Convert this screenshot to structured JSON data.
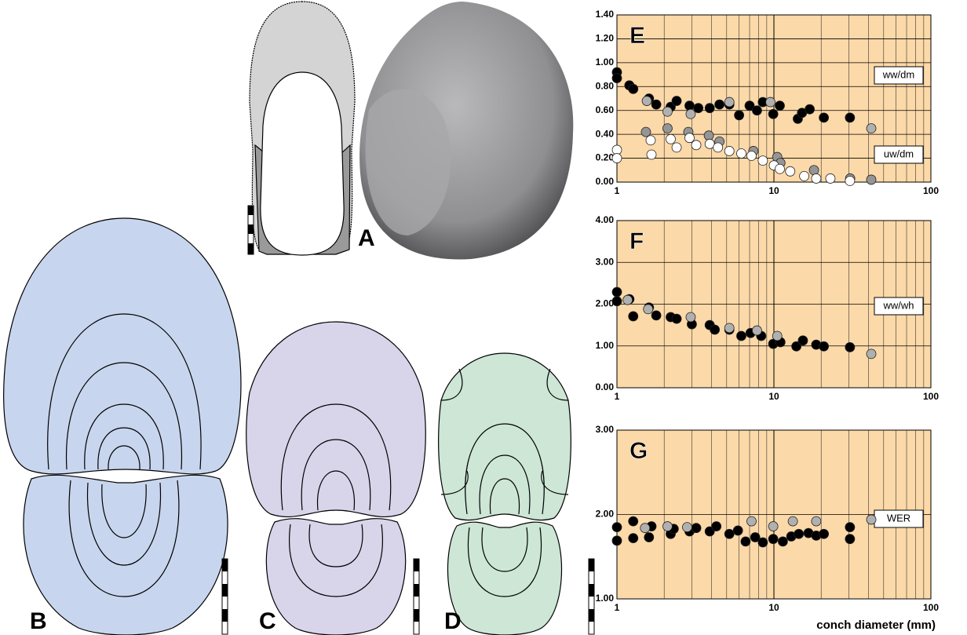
{
  "panels": [
    "A",
    "B",
    "C",
    "D"
  ],
  "chart_data": [
    {
      "type": "scatter",
      "title": "E",
      "xlog": true,
      "xlim": [
        1,
        100
      ],
      "xticks": [
        1,
        10,
        100
      ],
      "ylim": [
        0,
        1.4
      ],
      "yticks": [
        {
          "value": 0,
          "label": "0.00"
        },
        {
          "value": 0.2,
          "label": "0.20"
        },
        {
          "value": 0.4,
          "label": "0.40"
        },
        {
          "value": 0.6,
          "label": "0.60"
        },
        {
          "value": 0.8,
          "label": "0.80"
        },
        {
          "value": 1.0,
          "label": "1.00"
        },
        {
          "value": 1.2,
          "label": "1.20"
        },
        {
          "value": 1.4,
          "label": "1.40"
        }
      ],
      "grid": true,
      "background": "#fcd9a8",
      "annotations": [
        "ww/dm",
        "uw/dm"
      ],
      "series": [
        {
          "color": "#000000",
          "x": [
            1,
            1,
            1.2,
            1.27,
            1.6,
            1.78,
            2.2,
            2.4,
            2.9,
            3.3,
            3.9,
            4.5,
            5.2,
            6.0,
            7.0,
            7.8,
            8.5,
            9.9,
            10.9,
            14.2,
            15.1,
            16.9,
            20.8,
            30.5
          ],
          "values": [
            0.92,
            0.87,
            0.81,
            0.78,
            0.7,
            0.65,
            0.63,
            0.68,
            0.64,
            0.62,
            0.62,
            0.65,
            0.65,
            0.56,
            0.64,
            0.6,
            0.67,
            0.57,
            0.64,
            0.53,
            0.58,
            0.61,
            0.54,
            0.54
          ]
        },
        {
          "color": "#b0b0b0",
          "x": [
            1.55,
            2.1,
            2.95,
            5.2,
            9.5,
            41.7
          ],
          "values": [
            0.68,
            0.59,
            0.57,
            0.67,
            0.67,
            0.45
          ]
        },
        {
          "color": "#959595",
          "x": [
            1.53,
            2.1,
            2.85,
            3.85,
            4.5,
            7.4,
            10.5,
            11,
            18,
            30.6,
            41.7
          ],
          "values": [
            0.42,
            0.45,
            0.42,
            0.39,
            0.34,
            0.26,
            0.21,
            0.16,
            0.1,
            0.03,
            0.02
          ]
        },
        {
          "color": "#ffffff",
          "x": [
            1,
            1,
            1.64,
            1.66,
            2.2,
            2.4,
            2.9,
            3.2,
            3.9,
            4.4,
            5.2,
            6.2,
            7.2,
            8.5,
            10,
            10.9,
            12.7,
            15.6,
            18.6,
            22.9,
            30.5
          ],
          "values": [
            0.27,
            0.2,
            0.35,
            0.23,
            0.36,
            0.29,
            0.37,
            0.31,
            0.32,
            0.29,
            0.26,
            0.24,
            0.22,
            0.18,
            0.14,
            0.11,
            0.09,
            0.05,
            0.03,
            0.03,
            0.01
          ]
        }
      ]
    },
    {
      "type": "scatter",
      "title": "F",
      "xlog": true,
      "xlim": [
        1,
        100
      ],
      "xticks": [
        1,
        10,
        100
      ],
      "ylim": [
        0,
        4
      ],
      "yticks": [
        {
          "value": 0,
          "label": "0.00"
        },
        {
          "value": 1,
          "label": "1.00"
        },
        {
          "value": 2,
          "label": "2.00"
        },
        {
          "value": 3,
          "label": "3.00"
        },
        {
          "value": 4,
          "label": "4.00"
        }
      ],
      "grid": true,
      "background": "#fcd9a8",
      "annotations": [
        "ww/wh"
      ],
      "series": [
        {
          "color": "#000000",
          "x": [
            1,
            1,
            1.2,
            1.27,
            1.6,
            1.78,
            2.2,
            2.4,
            3.0,
            3.9,
            4.2,
            5.2,
            6.2,
            7.1,
            8.3,
            9.9,
            11,
            13.9,
            15.3,
            18.6,
            20.8,
            30.5
          ],
          "values": [
            2.29,
            2.07,
            2.12,
            1.71,
            1.92,
            1.73,
            1.69,
            1.65,
            1.52,
            1.5,
            1.39,
            1.39,
            1.24,
            1.31,
            1.24,
            1.05,
            1.09,
            0.99,
            1.13,
            1.03,
            0.99,
            0.97
          ]
        },
        {
          "color": "#b0b0b0",
          "x": [
            1.17,
            1.58,
            2.95,
            5.2,
            7.8,
            10.5,
            41.7
          ],
          "values": [
            2.1,
            1.88,
            1.69,
            1.43,
            1.37,
            1.24,
            0.81
          ]
        }
      ]
    },
    {
      "type": "scatter",
      "title": "G",
      "xlog": true,
      "xlim": [
        1,
        100
      ],
      "xticks": [
        1,
        10,
        100
      ],
      "ylim": [
        1,
        3
      ],
      "yticks": [
        {
          "value": 1,
          "label": "1.00"
        },
        {
          "value": 2,
          "label": "2.00"
        },
        {
          "value": 3,
          "label": "3.00"
        }
      ],
      "grid": true,
      "background": "#fcd9a8",
      "annotations": [
        "WER"
      ],
      "xlabel": "conch diameter (mm)",
      "series": [
        {
          "color": "#000000",
          "x": [
            1,
            1,
            1.27,
            1.27,
            1.66,
            1.6,
            2.2,
            2.3,
            2.9,
            3.2,
            3.9,
            4.3,
            5.2,
            5.9,
            6.6,
            7.6,
            8.5,
            9.9,
            11.4,
            12.9,
            14.4,
            16.6,
            18.6,
            20.8,
            30.5,
            30.5
          ],
          "values": [
            1.85,
            1.69,
            1.92,
            1.72,
            1.86,
            1.73,
            1.77,
            1.83,
            1.8,
            1.84,
            1.8,
            1.86,
            1.77,
            1.81,
            1.68,
            1.73,
            1.67,
            1.71,
            1.68,
            1.74,
            1.77,
            1.78,
            1.75,
            1.77,
            1.85,
            1.71
          ]
        },
        {
          "color": "#b0b0b0",
          "x": [
            1.51,
            2.1,
            2.8,
            7.2,
            9.9,
            13.2,
            18.6,
            41.7
          ],
          "values": [
            1.84,
            1.86,
            1.85,
            1.92,
            1.86,
            1.92,
            1.92,
            1.94
          ]
        }
      ]
    }
  ]
}
